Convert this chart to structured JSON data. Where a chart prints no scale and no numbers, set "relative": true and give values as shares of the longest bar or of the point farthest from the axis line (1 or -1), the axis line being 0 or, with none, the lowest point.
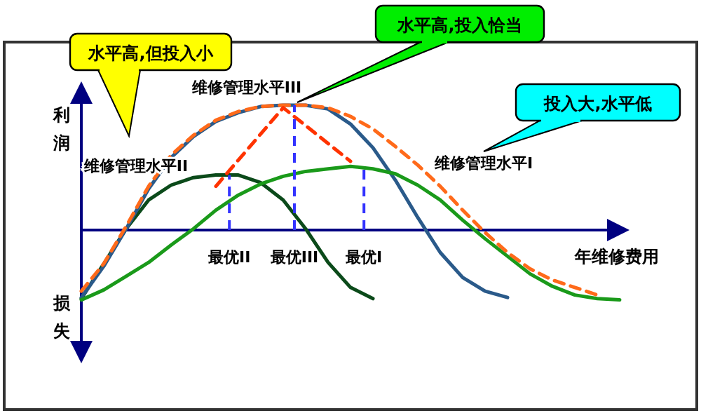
{
  "chart_data": {
    "type": "line",
    "relative": true,
    "xlabel": "年维修费用",
    "ylabel": "利润",
    "categories": [
      null,
      null,
      null,
      null,
      null,
      null,
      null,
      null,
      null,
      null,
      null,
      null,
      null,
      null,
      null,
      null,
      null,
      null,
      null,
      null,
      null,
      null,
      null,
      null,
      null
    ],
    "series": [
      {
        "name": "维修管理水平II",
        "color": "#0b4a1a",
        "values": [
          -0.55,
          -0.27,
          0.01,
          0.24,
          0.36,
          0.42,
          0.44,
          0.44,
          0.38,
          0.24,
          0.01,
          -0.26,
          -0.46,
          -0.55,
          null,
          null,
          null,
          null,
          null,
          null,
          null,
          null,
          null,
          null,
          null
        ]
      },
      {
        "name": "维修管理水平III",
        "color": "#2a5a8a",
        "values": [
          -0.54,
          -0.29,
          0.01,
          0.33,
          0.58,
          0.75,
          0.87,
          0.94,
          0.99,
          1.0,
          1.0,
          0.97,
          0.85,
          0.66,
          0.4,
          0.1,
          -0.18,
          -0.38,
          -0.49,
          -0.54,
          null,
          null,
          null,
          null,
          null
        ]
      },
      {
        "name": "维修管理水平I",
        "color": "#1a9a1a",
        "values": [
          -0.56,
          -0.48,
          -0.37,
          -0.26,
          -0.12,
          0.01,
          0.16,
          0.28,
          0.37,
          0.43,
          0.47,
          0.49,
          0.51,
          0.49,
          0.45,
          0.36,
          0.24,
          0.08,
          -0.07,
          -0.21,
          -0.35,
          -0.45,
          -0.52,
          -0.55,
          -0.56
        ]
      },
      {
        "color": "#ff6a1a",
        "line_style": "dashed",
        "values": [
          -0.49,
          -0.27,
          0.03,
          0.35,
          0.6,
          0.76,
          0.88,
          0.95,
          0.99,
          1.0,
          1.0,
          0.98,
          0.91,
          0.81,
          0.67,
          0.52,
          0.35,
          0.16,
          -0.02,
          -0.18,
          -0.31,
          -0.4,
          -0.46,
          -0.52,
          null
        ]
      },
      {
        "color": "#ff3300",
        "line_style": "dashed",
        "values": [
          null,
          null,
          null,
          null,
          null,
          null,
          0.35,
          null,
          null,
          0.98,
          null,
          null,
          0.55,
          null,
          null,
          null,
          null,
          null,
          null,
          null,
          null,
          null,
          null,
          null,
          null
        ]
      }
    ],
    "ref_lines": [
      {
        "axis": "y",
        "value": 0,
        "color": "#000080"
      }
    ],
    "annotations": [
      "水平高,但投入小",
      "水平高,投入恰当",
      "投入大,水平低",
      "最优II",
      "最优III",
      "最优I",
      "损失"
    ]
  }
}
